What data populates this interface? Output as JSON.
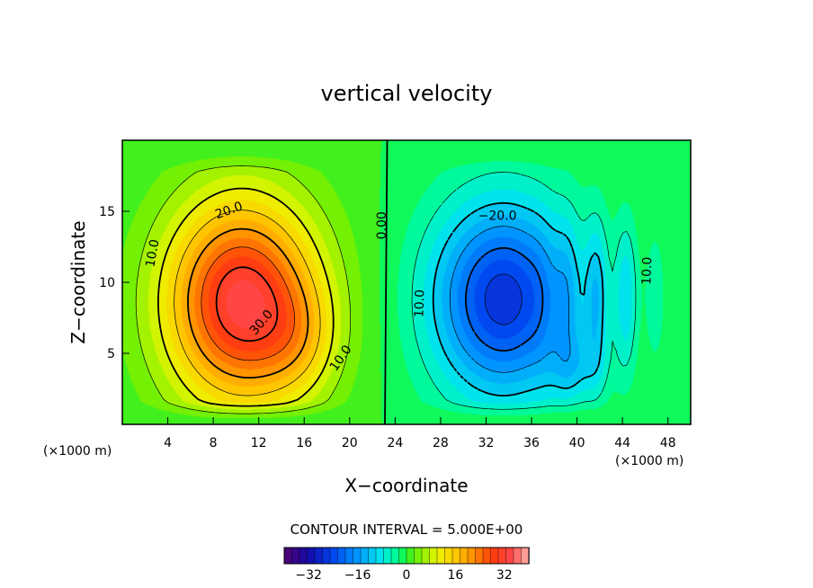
{
  "chart_data": {
    "type": "heatmap",
    "title": "vertical velocity",
    "xlabel": "X−coordinate",
    "ylabel": "Z−coordinate",
    "x_unit_left": "(×1000 m)",
    "x_unit_right": "(×1000 m)",
    "xlim": [
      0,
      50
    ],
    "ylim": [
      0,
      20
    ],
    "x_ticks": [
      4,
      8,
      12,
      16,
      20,
      24,
      28,
      32,
      36,
      40,
      44,
      48
    ],
    "y_ticks": [
      5,
      10,
      15
    ],
    "x_tick_labels": [
      "4",
      "8",
      "12",
      "16",
      "20",
      "24",
      "28",
      "32",
      "36",
      "40",
      "44",
      "48"
    ],
    "y_tick_labels": [
      "5",
      "10",
      "15"
    ],
    "features": [
      {
        "name": "updraft",
        "x_center": 10.5,
        "z_center": 8.5,
        "max_value": 34
      },
      {
        "name": "downdraft",
        "x_center": 33.5,
        "z_center": 8.5,
        "min_value": -27
      }
    ],
    "contour_labels": [
      {
        "text": "10.0",
        "x": 3,
        "z": 12
      },
      {
        "text": "20.0",
        "x": 9.5,
        "z": 14.8
      },
      {
        "text": "30.0",
        "x": 12.5,
        "z": 7
      },
      {
        "text": "10.0",
        "x": 19.5,
        "z": 4.5
      },
      {
        "text": "0.00",
        "x": 23.2,
        "z": 14
      },
      {
        "text": "10.0",
        "x": 26.5,
        "z": 8.5
      },
      {
        "text": "−20.0",
        "x": 33,
        "z": 14.4
      },
      {
        "text": "10.0",
        "x": 46.5,
        "z": 10.8
      }
    ],
    "contour_interval_text": "CONTOUR INTERVAL = 5.000E+00",
    "colorbar": {
      "range": [
        -40,
        40
      ],
      "ticks": [
        -32,
        -16,
        0,
        16,
        32
      ],
      "tick_labels": [
        "−32",
        "−16",
        "0",
        "16",
        "32"
      ]
    },
    "grid": false,
    "legend": "none"
  }
}
